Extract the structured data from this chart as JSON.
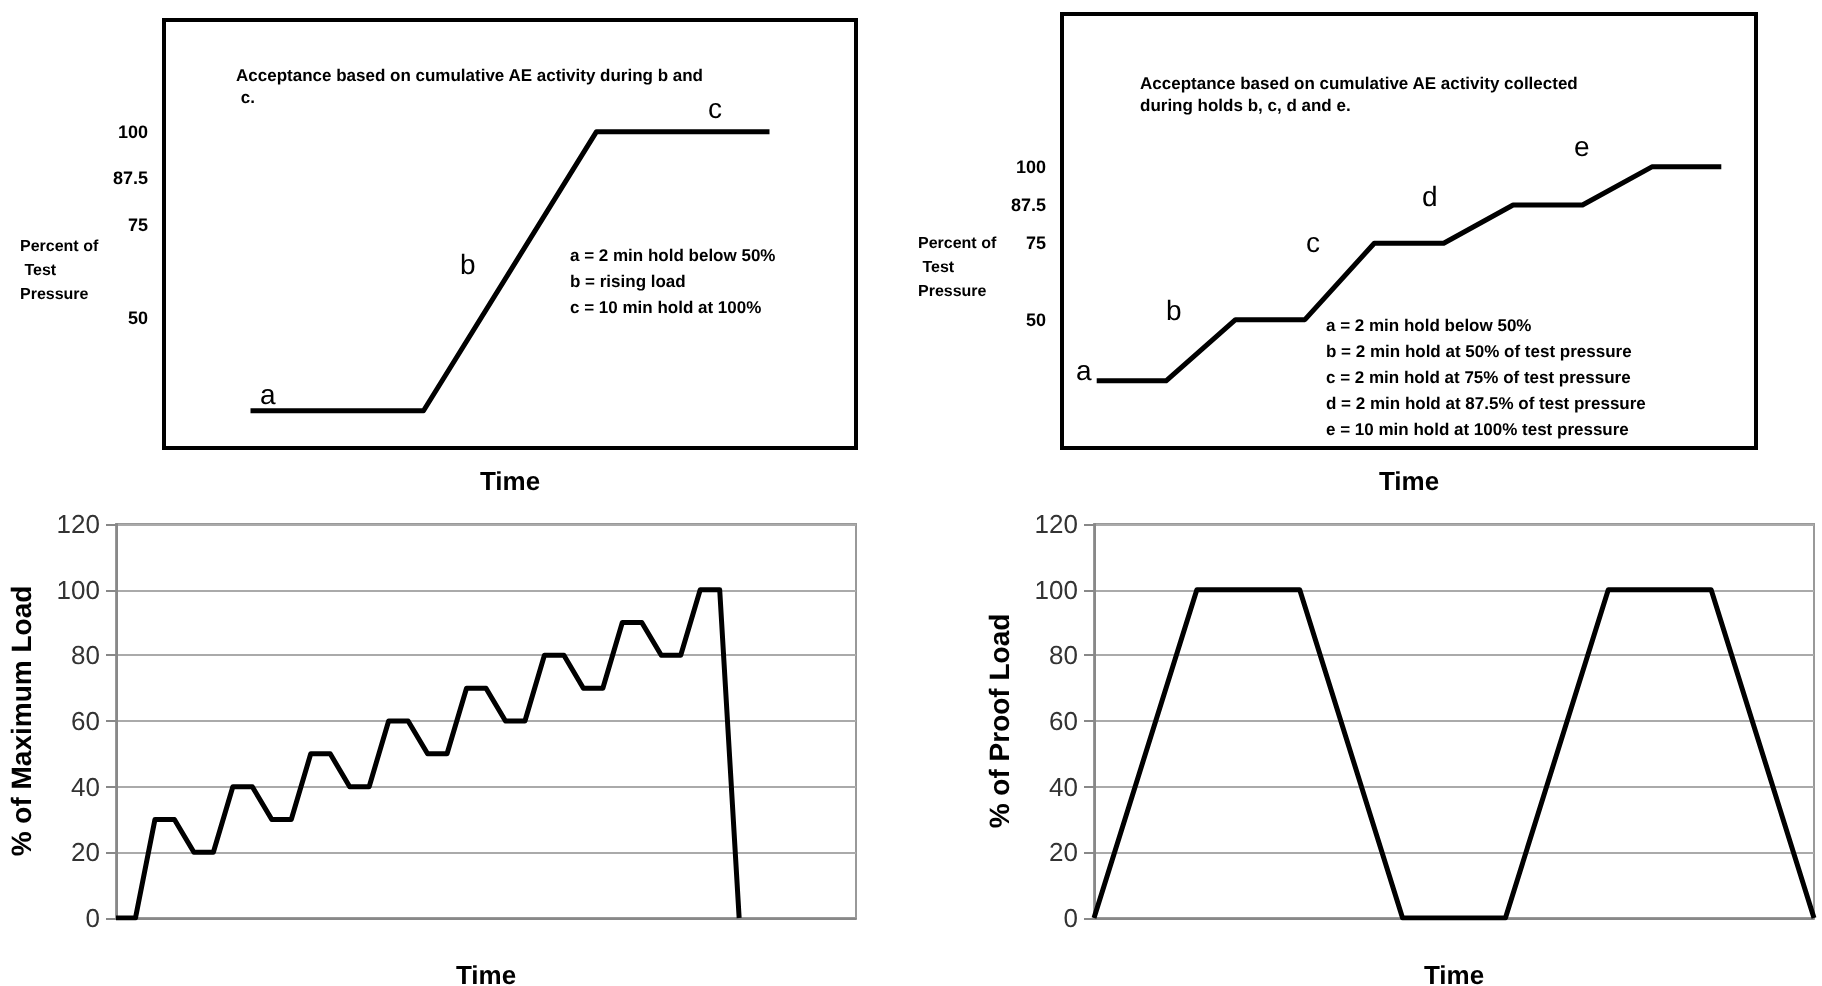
{
  "chart_data": [
    {
      "type": "line",
      "xlabel": "Time",
      "ylabel": "Percent of Test Pressure",
      "categories": [
        null,
        null,
        null,
        null
      ],
      "series": [
        {
          "color": "#000000",
          "values": [
            25,
            25,
            100,
            100
          ]
        }
      ],
      "ylim": [
        15,
        130
      ],
      "yticks": [
        50,
        75,
        87.5,
        100
      ],
      "tick_labels": "y",
      "marker": "none",
      "annotations": [
        "Acceptance based on cumulative AE activity during b and c.",
        "a = 2 min hold below 50%",
        "b = rising load",
        "c = 10 min hold at 100%",
        "a",
        "b",
        "c"
      ]
    },
    {
      "type": "line",
      "xlabel": "Time",
      "ylabel": "Percent of Test Pressure",
      "categories": [
        null,
        null,
        null,
        null,
        null,
        null,
        null,
        null,
        null,
        null
      ],
      "series": [
        {
          "color": "#000000",
          "values": [
            30,
            30,
            50,
            50,
            75,
            75,
            87.5,
            87.5,
            100,
            100
          ]
        }
      ],
      "ylim": [
        8,
        150
      ],
      "yticks": [
        50,
        75,
        87.5,
        100
      ],
      "tick_labels": "y",
      "marker": "none",
      "annotations": [
        "Acceptance based on cumulative AE activity collected during holds b, c, d and e.",
        "a = 2 min hold below 50%",
        "b = 2 min hold at 50% of test pressure",
        "c = 2 min hold at 75% of test pressure",
        "d = 2 min hold at 87.5% of test pressure",
        "e = 10 min hold at 100% test pressure",
        "a",
        "b",
        "c",
        "d",
        "e"
      ]
    },
    {
      "type": "line",
      "xlabel": "Time",
      "ylabel": "% of Maximum Load",
      "categories": [
        null,
        null,
        null,
        null,
        null,
        null,
        null,
        null,
        null,
        null,
        null,
        null,
        null,
        null,
        null,
        null,
        null,
        null,
        null,
        null,
        null,
        null,
        null,
        null,
        null,
        null,
        null,
        null,
        null,
        null,
        null,
        null,
        null,
        null,
        null,
        null,
        null,
        null,
        null
      ],
      "series": [
        {
          "color": "#000000",
          "values": [
            0,
            0,
            30,
            30,
            20,
            20,
            40,
            40,
            30,
            30,
            50,
            50,
            40,
            40,
            60,
            60,
            50,
            50,
            70,
            70,
            60,
            60,
            80,
            80,
            70,
            70,
            90,
            90,
            80,
            80,
            100,
            100,
            0,
            null,
            null,
            null,
            null,
            null,
            null
          ]
        }
      ],
      "ylim": [
        0,
        120
      ],
      "yticks": [
        0,
        20,
        40,
        60,
        80,
        100,
        120
      ],
      "tick_labels": "y",
      "marker": "none",
      "grid": "y"
    },
    {
      "type": "line",
      "xlabel": "Time",
      "ylabel": "% of Proof Load",
      "categories": [
        null,
        null,
        null,
        null,
        null,
        null,
        null,
        null
      ],
      "series": [
        {
          "color": "#000000",
          "values": [
            0,
            100,
            100,
            0,
            0,
            100,
            100,
            0
          ]
        }
      ],
      "ylim": [
        0,
        120
      ],
      "yticks": [
        0,
        20,
        40,
        60,
        80,
        100,
        120
      ],
      "tick_labels": "y",
      "marker": "none",
      "grid": "y"
    }
  ]
}
